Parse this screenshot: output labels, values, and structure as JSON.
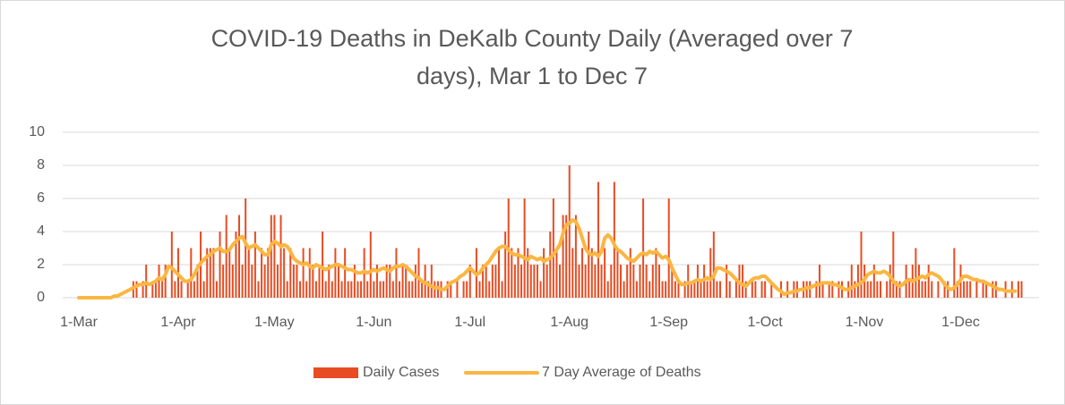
{
  "chart_data": {
    "type": "bar",
    "title": "COVID-19 Deaths in DeKalb County Daily (Averaged over 7 days), Mar 1 to Dec 7",
    "categories": [
      "1-Mar",
      null,
      null,
      null,
      null,
      null,
      null,
      null,
      null,
      null,
      null,
      null,
      null,
      null,
      null,
      null,
      null,
      null,
      null,
      null,
      null,
      null,
      null,
      null,
      null,
      null,
      null,
      null,
      null,
      null,
      null,
      "1-Apr",
      null,
      null,
      null,
      null,
      null,
      null,
      null,
      null,
      null,
      null,
      null,
      null,
      null,
      null,
      null,
      null,
      null,
      null,
      null,
      null,
      null,
      null,
      null,
      null,
      null,
      null,
      null,
      null,
      null,
      "1-May",
      null,
      null,
      null,
      null,
      null,
      null,
      null,
      null,
      null,
      null,
      null,
      null,
      null,
      null,
      null,
      null,
      null,
      null,
      null,
      null,
      null,
      null,
      null,
      null,
      null,
      null,
      null,
      null,
      null,
      null,
      "1-Jun",
      null,
      null,
      null,
      null,
      null,
      null,
      null,
      null,
      null,
      null,
      null,
      null,
      null,
      null,
      null,
      null,
      null,
      null,
      null,
      null,
      null,
      null,
      null,
      null,
      null,
      null,
      null,
      null,
      null,
      "1-Jul",
      null,
      null,
      null,
      null,
      null,
      null,
      null,
      null,
      null,
      null,
      null,
      null,
      null,
      null,
      null,
      null,
      null,
      null,
      null,
      null,
      null,
      null,
      null,
      null,
      null,
      null,
      null,
      null,
      null,
      null,
      "1-Aug",
      null,
      null,
      null,
      null,
      null,
      null,
      null,
      null,
      null,
      null,
      null,
      null,
      null,
      null,
      null,
      null,
      null,
      null,
      null,
      null,
      null,
      null,
      null,
      null,
      null,
      null,
      null,
      null,
      null,
      null,
      "1-Sep",
      null,
      null,
      null,
      null,
      null,
      null,
      null,
      null,
      null,
      null,
      null,
      null,
      null,
      null,
      null,
      null,
      null,
      null,
      null,
      null,
      null,
      null,
      null,
      null,
      null,
      null,
      null,
      null,
      null,
      "1-Oct",
      null,
      null,
      null,
      null,
      null,
      null,
      null,
      null,
      null,
      null,
      null,
      null,
      null,
      null,
      null,
      null,
      null,
      null,
      null,
      null,
      null,
      null,
      null,
      null,
      null,
      null,
      null,
      null,
      null,
      null,
      "1-Nov",
      null,
      null,
      null,
      null,
      null,
      null,
      null,
      null,
      null,
      null,
      null,
      null,
      null,
      null,
      null,
      null,
      null,
      null,
      null,
      null,
      null,
      null,
      null,
      null,
      null,
      null,
      null,
      null,
      null,
      "1-Dec",
      null,
      null,
      null,
      null,
      null,
      null,
      null,
      null,
      null,
      null,
      null,
      null,
      null,
      null,
      null,
      null,
      null,
      null,
      null
    ],
    "series": [
      {
        "name": "Daily Cases",
        "type": "bar",
        "color": "#e84c22",
        "values": [
          0,
          0,
          0,
          0,
          0,
          0,
          0,
          0,
          0,
          0,
          0,
          0,
          0,
          0,
          0,
          0,
          0,
          1,
          1,
          0,
          1,
          2,
          0,
          1,
          1,
          2,
          1,
          2,
          0,
          4,
          1,
          3,
          1,
          0,
          1,
          3,
          1,
          2,
          4,
          1,
          3,
          3,
          3,
          1,
          4,
          2,
          5,
          3,
          2,
          4,
          5,
          2,
          6,
          3,
          2,
          4,
          1,
          3,
          2,
          3,
          5,
          5,
          2,
          5,
          3,
          1,
          3,
          2,
          2,
          1,
          3,
          1,
          3,
          2,
          1,
          2,
          4,
          1,
          2,
          1,
          3,
          2,
          1,
          3,
          1,
          1,
          2,
          1,
          1,
          3,
          1,
          4,
          1,
          2,
          1,
          1,
          2,
          2,
          1,
          3,
          1,
          2,
          2,
          1,
          1,
          2,
          3,
          1,
          2,
          1,
          2,
          1,
          1,
          1,
          0,
          1,
          1,
          0,
          1,
          0,
          1,
          1,
          2,
          0,
          3,
          1,
          2,
          2,
          1,
          2,
          2,
          3,
          1,
          4,
          6,
          3,
          2,
          3,
          2,
          6,
          3,
          2,
          2,
          2,
          1,
          3,
          2,
          4,
          6,
          3,
          2,
          5,
          5,
          8,
          3,
          5,
          2,
          3,
          2,
          4,
          3,
          2,
          7,
          2,
          3,
          1,
          2,
          7,
          3,
          2,
          1,
          2,
          3,
          2,
          1,
          2,
          6,
          2,
          1,
          2,
          3,
          2,
          1,
          1,
          6,
          2,
          1,
          1,
          0,
          1,
          2,
          1,
          1,
          2,
          1,
          2,
          1,
          3,
          4,
          1,
          1,
          0,
          2,
          1,
          0,
          1,
          2,
          2,
          1,
          0,
          1,
          1,
          0,
          1,
          1,
          0,
          1,
          0,
          0,
          1,
          0,
          1,
          0,
          1,
          1,
          0,
          1,
          1,
          1,
          0,
          1,
          2,
          1,
          0,
          1,
          1,
          0,
          1,
          1,
          0,
          1,
          2,
          1,
          2,
          4,
          2,
          1,
          1,
          2,
          1,
          1,
          0,
          1,
          2,
          4,
          1,
          1,
          0,
          2,
          1,
          2,
          3,
          2,
          1,
          1,
          2,
          1,
          0,
          1,
          0,
          1,
          1,
          0,
          3,
          1,
          2,
          1,
          1,
          1,
          0,
          1,
          0,
          1,
          1,
          0,
          1,
          1,
          0,
          0,
          1,
          0,
          1,
          0,
          1,
          1
        ]
      },
      {
        "name": "7 Day Average of Deaths",
        "type": "line",
        "color": "#fbb642",
        "values": [
          0,
          0,
          0,
          0,
          0,
          0,
          0,
          0,
          0,
          0,
          0,
          0.1,
          0.1,
          0.2,
          0.3,
          0.4,
          0.5,
          0.6,
          0.7,
          0.8,
          0.8,
          0.9,
          0.8,
          0.9,
          1,
          1.2,
          1.1,
          1.4,
          1.9,
          1.8,
          1.6,
          1.4,
          1.2,
          1,
          1,
          1.1,
          1.4,
          1.8,
          2.1,
          2.3,
          2.5,
          2.6,
          2.8,
          2.9,
          3,
          2.8,
          2.8,
          2.9,
          3.2,
          3.4,
          3.6,
          3.7,
          3.3,
          3,
          3.1,
          3.2,
          3,
          2.8,
          2.6,
          2.6,
          3.2,
          3.4,
          3.3,
          3.1,
          3.2,
          3.1,
          2.8,
          2.4,
          2.2,
          2.1,
          2,
          2.1,
          1.9,
          1.8,
          2,
          1.9,
          1.8,
          1.7,
          1.8,
          1.9,
          2,
          2,
          1.9,
          1.8,
          1.7,
          1.7,
          1.6,
          1.5,
          1.5,
          1.6,
          1.5,
          1.6,
          1.7,
          1.6,
          1.7,
          1.8,
          1.7,
          1.6,
          1.8,
          1.9,
          1.9,
          2,
          1.9,
          1.7,
          1.5,
          1.3,
          1.2,
          1,
          0.9,
          0.8,
          0.7,
          0.6,
          0.6,
          0.5,
          0.5,
          0.7,
          0.9,
          1,
          1.1,
          1.3,
          1.4,
          1.6,
          1.8,
          1.6,
          1.4,
          1.5,
          1.8,
          2,
          2.2,
          2.5,
          2.8,
          3,
          3.1,
          3.1,
          2.9,
          2.7,
          2.6,
          2.6,
          2.5,
          2.4,
          2.3,
          2.5,
          2.4,
          2.3,
          2.4,
          2.2,
          2.3,
          2.4,
          2.6,
          2.9,
          3.2,
          3.9,
          4.4,
          4.5,
          4.7,
          4.6,
          4.2,
          3.6,
          3,
          2.7,
          2.6,
          2.7,
          2.5,
          2.8,
          3.6,
          3.8,
          3.6,
          3.2,
          2.9,
          2.8,
          2.6,
          2.4,
          2.3,
          2.2,
          2.4,
          2.6,
          2.7,
          2.6,
          2.8,
          2.7,
          2.8,
          2.6,
          2.4,
          2.5,
          2.3,
          1.8,
          1.4,
          1,
          0.8,
          0.8,
          0.9,
          0.9,
          1,
          1.1,
          1,
          1.1,
          1.2,
          1.1,
          1.3,
          1.8,
          1.8,
          1.7,
          1.6,
          1.5,
          1.3,
          1.1,
          0.9,
          0.8,
          0.7,
          0.9,
          1.1,
          1.2,
          1.2,
          1.3,
          1.3,
          1.1,
          0.9,
          0.7,
          0.5,
          0.4,
          0.2,
          0.3,
          0.3,
          0.4,
          0.4,
          0.5,
          0.5,
          0.6,
          0.6,
          0.7,
          0.8,
          0.8,
          0.9,
          0.9,
          0.9,
          0.8,
          0.8,
          0.7,
          0.6,
          0.5,
          0.5,
          0.6,
          0.7,
          0.8,
          0.9,
          1.1,
          1.4,
          1.5,
          1.6,
          1.5,
          1.5,
          1.6,
          1.5,
          1.3,
          1,
          0.8,
          0.7,
          0.8,
          1,
          1.1,
          1,
          1.1,
          1.2,
          1.3,
          1.2,
          1.4,
          1.5,
          1.4,
          1.3,
          1.1,
          0.8,
          0.6,
          0.5,
          0.6,
          0.8,
          1.1,
          1.3,
          1.3,
          1.2,
          1.1,
          1.1,
          1,
          1,
          0.9,
          0.8,
          0.7,
          0.6,
          0.5,
          0.5,
          0.4,
          0.4,
          0.4,
          0.4,
          null,
          null
        ]
      }
    ],
    "ylim": [
      0,
      10
    ],
    "yticks": [
      0,
      2,
      4,
      6,
      8,
      10
    ],
    "grid": true,
    "legend": "bottom"
  }
}
